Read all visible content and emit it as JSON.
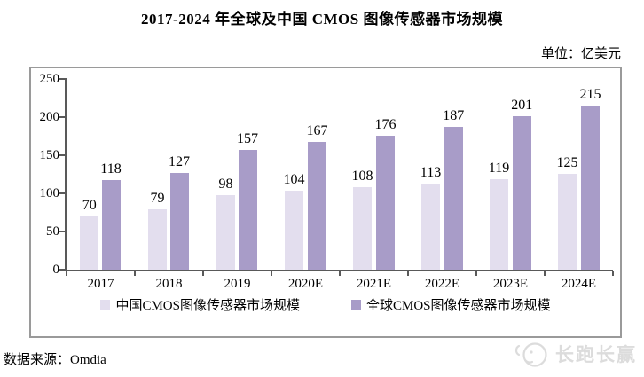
{
  "page": {
    "title": "2017-2024 年全球及中国 CMOS 图像传感器市场规模",
    "unit_label": "单位：亿美元",
    "source_label": "数据来源：Omdia",
    "watermark_text": "长跑长赢"
  },
  "chart_data": {
    "type": "bar",
    "title": "2017-2024 年全球及中国 CMOS 图像传感器市场规模",
    "unit": "亿美元",
    "categories": [
      "2017",
      "2018",
      "2019",
      "2020E",
      "2021E",
      "2022E",
      "2023E",
      "2024E"
    ],
    "series": [
      {
        "name": "中国CMOS图像传感器市场规模",
        "color": "#e3deee",
        "values": [
          70,
          79,
          98,
          104,
          108,
          113,
          119,
          125
        ]
      },
      {
        "name": "全球CMOS图像传感器市场规模",
        "color": "#a89cc8",
        "values": [
          118,
          127,
          157,
          167,
          176,
          187,
          201,
          215
        ]
      }
    ],
    "xlabel": "",
    "ylabel": "",
    "ylim": [
      0,
      250
    ],
    "yticks": [
      0,
      50,
      100,
      150,
      200,
      250
    ],
    "grid": false,
    "legend_position": "bottom",
    "data_labels": true,
    "source": "Omdia"
  }
}
